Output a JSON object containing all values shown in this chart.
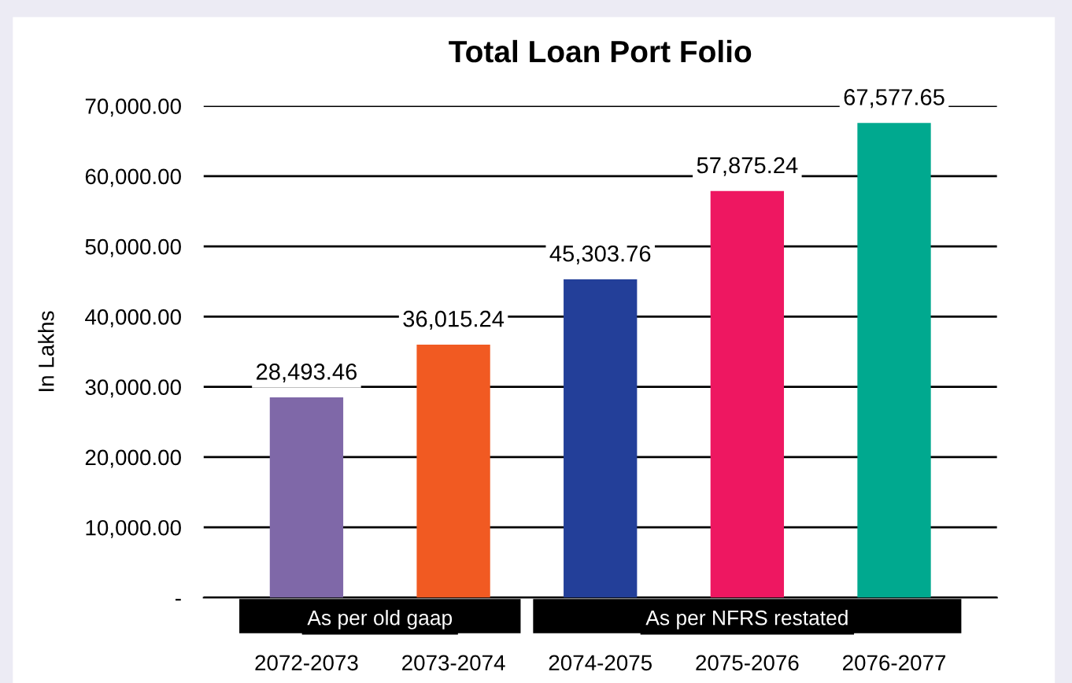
{
  "chart_data": {
    "type": "bar",
    "title": "Total Loan Port Folio",
    "ylabel": "In Lakhs",
    "categories": [
      "2072-2073",
      "2073-2074",
      "2074-2075",
      "2075-2076",
      "2076-2077"
    ],
    "values": [
      28493.46,
      36015.24,
      45303.76,
      57875.24,
      67577.65
    ],
    "colors": [
      "#7f68a8",
      "#f15a22",
      "#233f99",
      "#ee1761",
      "#00a98f"
    ],
    "value_labels": [
      "28,493.46",
      "36,015.24",
      "45,303.76",
      "57,875.24",
      "67,577.65"
    ],
    "ylim": [
      0,
      70000
    ],
    "yticks": [
      {
        "value": 0,
        "label": "-"
      },
      {
        "value": 10000,
        "label": "10,000.00"
      },
      {
        "value": 20000,
        "label": "20,000.00"
      },
      {
        "value": 30000,
        "label": "30,000.00"
      },
      {
        "value": 40000,
        "label": "40,000.00"
      },
      {
        "value": 50000,
        "label": "50,000.00"
      },
      {
        "value": 60000,
        "label": "60,000.00"
      },
      {
        "value": 70000,
        "label": "70,000.00"
      }
    ],
    "grid": "y",
    "annotations": [
      "As per old gaap",
      "As per NFRS restated"
    ]
  }
}
